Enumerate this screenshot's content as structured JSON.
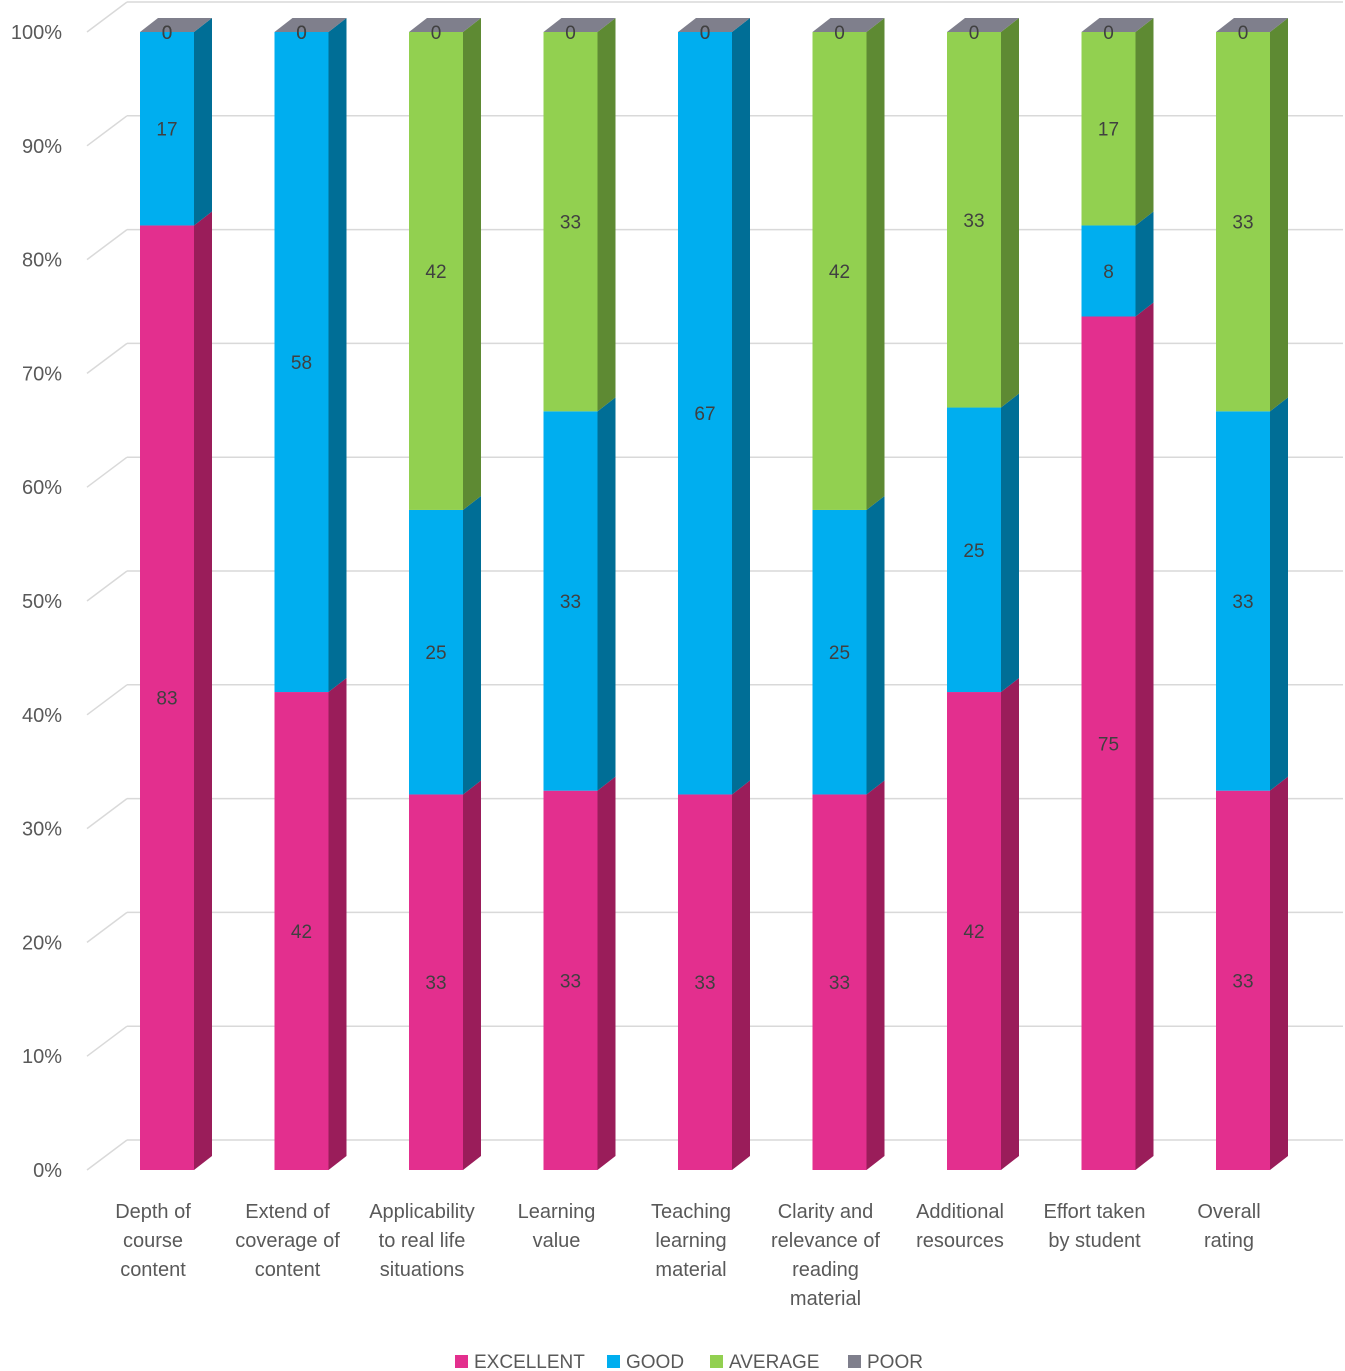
{
  "chart_data": {
    "type": "bar",
    "stacked": true,
    "percent_stacked": true,
    "three_d": true,
    "categories": [
      [
        "Depth of",
        "course",
        "content"
      ],
      [
        "Extend of",
        "coverage of",
        "content"
      ],
      [
        "Applicability",
        "to real life",
        "situations"
      ],
      [
        "Learning",
        "value"
      ],
      [
        "Teaching",
        "learning",
        "material"
      ],
      [
        "Clarity and",
        "relevance of",
        "reading",
        "material"
      ],
      [
        "Additional",
        "resources"
      ],
      [
        "Effort taken",
        "by student"
      ],
      [
        "Overall",
        "rating"
      ]
    ],
    "series": [
      {
        "name": "EXCELLENT",
        "color": "#E32F8E",
        "side_color": "#9A1D5A",
        "values": [
          83,
          42,
          33,
          33,
          33,
          33,
          42,
          75,
          33
        ]
      },
      {
        "name": "GOOD",
        "color": "#00AEEF",
        "side_color": "#006E96",
        "values": [
          17,
          58,
          25,
          33,
          67,
          25,
          25,
          8,
          33
        ]
      },
      {
        "name": "AVERAGE",
        "color": "#92D050",
        "side_color": "#5E8A33",
        "values": [
          0,
          0,
          42,
          33,
          0,
          42,
          33,
          17,
          33
        ]
      },
      {
        "name": "POOR",
        "color": "#7F7F8C",
        "side_color": "#5A5A66",
        "values": [
          0,
          0,
          0,
          0,
          0,
          0,
          0,
          0,
          0
        ]
      }
    ],
    "y_ticks": [
      "0%",
      "10%",
      "20%",
      "30%",
      "40%",
      "50%",
      "60%",
      "70%",
      "80%",
      "90%",
      "100%"
    ],
    "ylim": [
      0,
      100
    ],
    "grid": true,
    "legend_position": "bottom"
  }
}
